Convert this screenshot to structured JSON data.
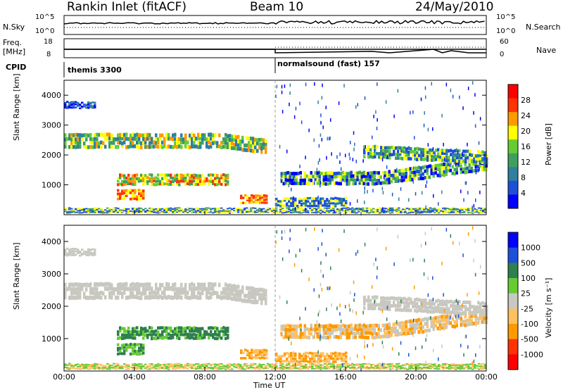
{
  "header": {
    "station": "Rankin Inlet (fitACF)",
    "beam": "Beam 10",
    "date": "24/May/2010"
  },
  "left_labels": {
    "nsky": "N.Sky",
    "freq": "Freq.",
    "freq_unit": "[MHz]",
    "cpid": "CPID"
  },
  "right_labels": {
    "nsearch": "N.Search",
    "nave": "Nave"
  },
  "cpid_labels": [
    {
      "text": "themis 3300",
      "start": "00:00"
    },
    {
      "text": "normalsound (fast) 157",
      "start": "12:00"
    }
  ],
  "colors": {
    "power_scale": [
      "#0000ff",
      "#1e4fd8",
      "#2f7f9f",
      "#3f9f5f",
      "#66cc33",
      "#ffff00",
      "#ff9900",
      "#ff3300",
      "#ff0000"
    ],
    "velocity_scale": [
      "#ff0000",
      "#ff3300",
      "#ff9900",
      "#ffc060",
      "#c8c8c0",
      "#66cc33",
      "#2f7f4f",
      "#1e4fd8",
      "#0000ff"
    ],
    "gray": "#c8c8c0"
  },
  "chart_data": [
    {
      "type": "line",
      "name": "nsky-nsearch",
      "ylabels": [
        "10^5",
        "10^0"
      ],
      "ylabels_right": [
        "10^5",
        "10^0"
      ],
      "x": [
        "00:00",
        "24:00"
      ]
    },
    {
      "type": "line",
      "name": "freq-nave",
      "yticks_left": [
        "18",
        "8"
      ],
      "yticks_right": [
        "60",
        "0"
      ],
      "x": [
        "00:00",
        "24:00"
      ]
    },
    {
      "type": "heatmap",
      "name": "power",
      "ylabel": "Slant Range [km]",
      "yticks": [
        1000,
        2000,
        3000,
        4000
      ],
      "ylim": [
        0,
        4500
      ],
      "xlim": [
        "00:00",
        "24:00"
      ],
      "colorbar_label": "Power [dB]",
      "colorbar_ticks": [
        "28",
        "24",
        "20",
        "16",
        "12",
        "8",
        "4"
      ]
    },
    {
      "type": "heatmap",
      "name": "velocity",
      "ylabel": "Slant Range [km]",
      "yticks": [
        1000,
        2000,
        3000,
        4000
      ],
      "ylim": [
        0,
        4500
      ],
      "xlim": [
        "00:00",
        "24:00"
      ],
      "xlabel": "Time UT",
      "xticks": [
        "00:00",
        "04:00",
        "08:00",
        "12:00",
        "16:00",
        "20:00",
        "00:00"
      ],
      "colorbar_label": "Velocity [m s⁻¹]",
      "colorbar_ticks": [
        "1000",
        "500",
        "100",
        "25",
        "-25",
        "-100",
        "-500",
        "-1000"
      ]
    }
  ]
}
